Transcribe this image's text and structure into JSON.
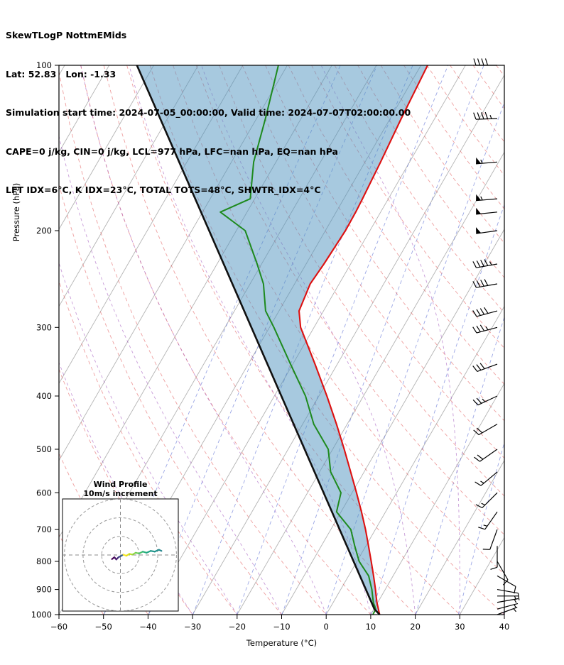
{
  "header": {
    "line1": "SkewTLogP NottmEMids",
    "line2": "Lat: 52.83   Lon: -1.33",
    "line3": "Simulation start time: 2024-07-05_00:00:00, Valid time: 2024-07-07T02:00:00.00",
    "line4": "CAPE=0 j/kg, CIN=0 j/kg, LCL=977 hPa, LFC=nan hPa, EQ=nan hPa",
    "line5": "LFT IDX=6°C, K IDX=23°C, TOTAL TOTS=48°C, SHWTR_IDX=4°C"
  },
  "metrics": {
    "CAPE_j_kg": 0,
    "CIN_j_kg": 0,
    "LCL_hPa": 977,
    "LFC": "nan",
    "EQ": "nan",
    "LFT_IDX_C": 6,
    "K_IDX_C": 23,
    "TOTAL_TOTS_C": 48,
    "SHWTR_IDX_C": 4
  },
  "chart_data": {
    "type": "skewt-logp",
    "title": "SkewTLogP NottmEMids",
    "xlabel": "Temperature (°C)",
    "ylabel": "Pressure (hPa)",
    "xlim": [
      -60,
      40
    ],
    "plim": [
      100,
      1000
    ],
    "x_ticks": [
      -60,
      -50,
      -40,
      -30,
      -20,
      -10,
      0,
      10,
      20,
      30,
      40
    ],
    "p_ticks": [
      100,
      200,
      300,
      400,
      500,
      600,
      700,
      800,
      900,
      1000
    ],
    "skew_deg": 30,
    "sounding": {
      "pressure_hPa": [
        1000,
        977,
        950,
        925,
        900,
        850,
        800,
        750,
        700,
        650,
        600,
        550,
        500,
        450,
        400,
        350,
        300,
        280,
        250,
        230,
        200,
        185,
        175,
        150,
        125,
        100
      ],
      "temperature_C": [
        12.0,
        11.0,
        9.8,
        8.8,
        7.8,
        5.6,
        3.2,
        0.6,
        -2.2,
        -5.4,
        -9.0,
        -13.0,
        -17.4,
        -22.4,
        -28.2,
        -35.0,
        -43.0,
        -45.5,
        -46.5,
        -46.0,
        -45.5,
        -45.6,
        -45.8,
        -46.5,
        -47.5,
        -48.5
      ],
      "dewpoint_C": [
        10.5,
        10.4,
        9.0,
        8.0,
        7.0,
        4.5,
        0.5,
        -2.5,
        -5.5,
        -11.0,
        -12.5,
        -17.5,
        -21.0,
        -27.5,
        -33.0,
        -40.5,
        -49.0,
        -53.0,
        -57.0,
        -61.0,
        -68.0,
        -76.0,
        -71.0,
        -75.0,
        -78.0,
        -82.0
      ]
    },
    "parcel": {
      "surface_T_C": 12.0,
      "surface_Td_C": 10.5,
      "lcl_hPa": 977
    },
    "winds": {
      "pressure_hPa": [
        1000,
        977,
        950,
        925,
        900,
        850,
        800,
        750,
        700,
        650,
        600,
        550,
        500,
        450,
        400,
        350,
        300,
        280,
        250,
        230,
        200,
        185,
        175,
        150,
        125,
        100
      ],
      "speed_kt": [
        4,
        5,
        6,
        7,
        8,
        9,
        10,
        10,
        12,
        13,
        15,
        15,
        18,
        20,
        25,
        30,
        35,
        38,
        42,
        46,
        50,
        52,
        53,
        55,
        45,
        38
      ],
      "direction_deg": [
        70,
        75,
        80,
        90,
        100,
        120,
        150,
        180,
        200,
        215,
        225,
        230,
        235,
        240,
        245,
        250,
        255,
        255,
        260,
        260,
        262,
        264,
        265,
        265,
        268,
        270
      ]
    },
    "background": {
      "isotherms_C": {
        "start": -160,
        "end": 40,
        "step": 10
      },
      "dry_adiabats_C": {
        "start": -60,
        "end": 200,
        "step": 10
      },
      "moist_adiabats_C": {
        "start": -30,
        "end": 30,
        "step": 10
      },
      "mixing_ratio_g_kg": [
        0.04,
        0.12,
        0.32,
        0.78,
        1.8,
        3.8,
        7.8,
        15,
        27,
        49
      ]
    },
    "hodograph": {
      "title": "Wind Profile",
      "subtitle": "10m/s increment",
      "ring_interval_ms": 10,
      "rings_ms": [
        10,
        20,
        30
      ],
      "u_ms": [
        -4.5,
        -3.2,
        -2.2,
        -1.0,
        0.2,
        1.6,
        3.2,
        4.8,
        6.4,
        8.2,
        10.0,
        12.0,
        14.0,
        16.2,
        18.4,
        20.6,
        22.0
      ],
      "v_ms": [
        -2.2,
        -1.2,
        -2.4,
        -1.2,
        -0.6,
        0.2,
        -0.4,
        0.6,
        0.2,
        1.2,
        0.8,
        1.8,
        1.2,
        2.2,
        1.8,
        2.8,
        2.2
      ],
      "segment_colors": [
        "#440154",
        "#471365",
        "#482475",
        "#414487",
        "#355f8d",
        "#fde725",
        "#e5e419",
        "#c0df25",
        "#93d741",
        "#6ece58",
        "#4ac16d",
        "#2db27d",
        "#21a585",
        "#1f978b",
        "#21918c",
        "#24868e"
      ]
    },
    "colors": {
      "temperature": "#dd1111",
      "dewpoint": "#1e8a1e",
      "parcel": "#111111",
      "shade": "#4f93c0",
      "isotherm": "#b3b3b3",
      "dry_adiabat": "#e05050",
      "moist_adiabat": "#9a4ab8",
      "mixing_line": "#4a5fd0",
      "barb": "#000000"
    }
  }
}
